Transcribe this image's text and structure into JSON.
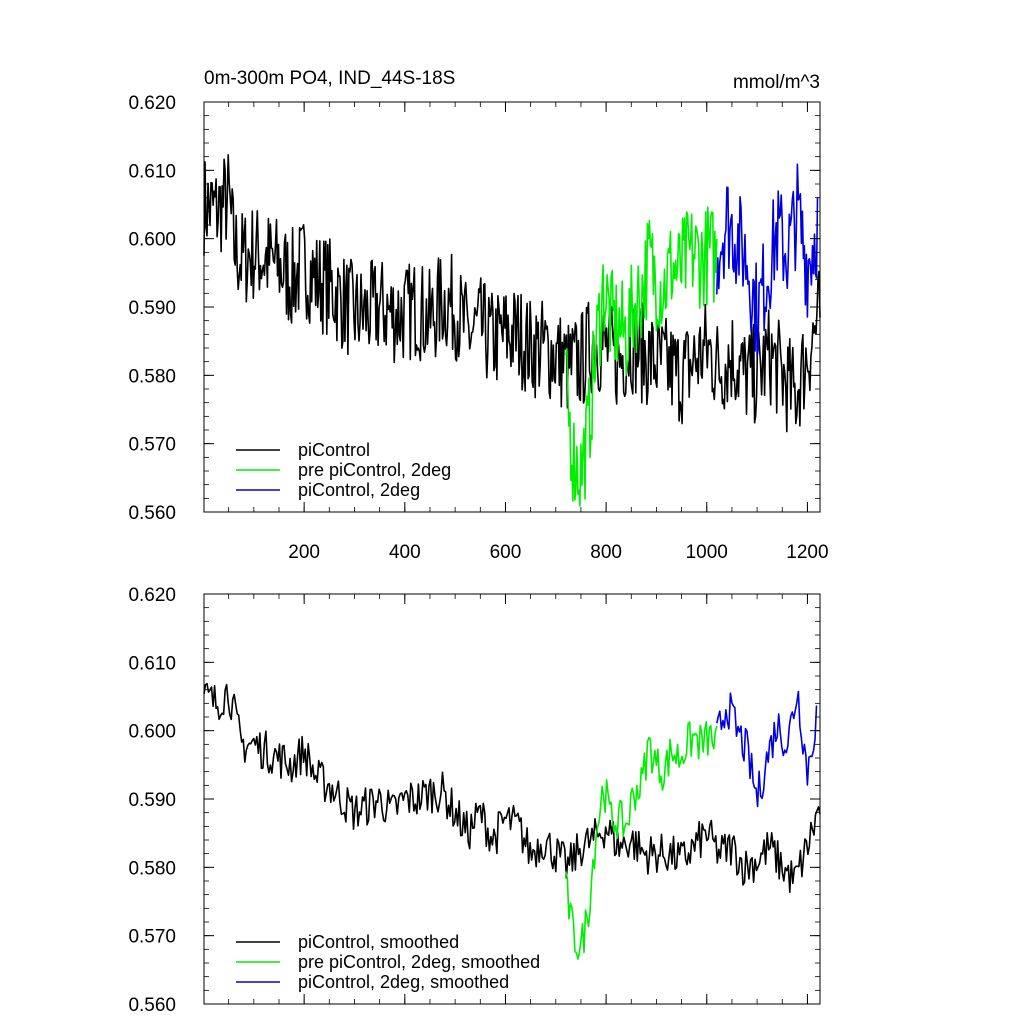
{
  "header": {
    "title": "0m-300m PO4, IND_44S-18S",
    "units": "mmol/m^3"
  },
  "chart_data": [
    {
      "type": "line",
      "panel": "top",
      "xlim": [
        1,
        1225
      ],
      "ylim": [
        0.56,
        0.62
      ],
      "x_ticks": [
        200,
        400,
        600,
        800,
        1000,
        1200
      ],
      "x_tick_labels": [
        "200",
        "400",
        "600",
        "800",
        "1000",
        "1200"
      ],
      "y_ticks": [
        0.56,
        0.57,
        0.58,
        0.59,
        0.6,
        0.61,
        0.62
      ],
      "y_tick_labels": [
        "0.560",
        "0.570",
        "0.580",
        "0.590",
        "0.600",
        "0.610",
        "0.620"
      ],
      "legend_position": "bottom-left",
      "series": [
        {
          "name": "piControl",
          "color": "#000000",
          "x": [
            1,
            25,
            50,
            60,
            75,
            100,
            125,
            150,
            175,
            200,
            225,
            250,
            275,
            300,
            325,
            350,
            375,
            400,
            425,
            450,
            475,
            500,
            525,
            550,
            575,
            600,
            625,
            650,
            675,
            700,
            725,
            750,
            775,
            800,
            825,
            850,
            875,
            900,
            925,
            950,
            975,
            1000,
            1025,
            1050,
            1075,
            1100,
            1125,
            1150,
            1175,
            1200,
            1225
          ],
          "y": [
            0.605,
            0.604,
            0.606,
            0.599,
            0.597,
            0.598,
            0.597,
            0.596,
            0.594,
            0.596,
            0.594,
            0.593,
            0.591,
            0.589,
            0.589,
            0.59,
            0.589,
            0.589,
            0.59,
            0.588,
            0.591,
            0.59,
            0.586,
            0.587,
            0.585,
            0.586,
            0.586,
            0.584,
            0.584,
            0.583,
            0.581,
            0.582,
            0.585,
            0.584,
            0.582,
            0.585,
            0.583,
            0.582,
            0.581,
            0.58,
            0.582,
            0.584,
            0.581,
            0.583,
            0.58,
            0.58,
            0.583,
            0.58,
            0.577,
            0.583,
            0.589
          ]
        },
        {
          "name": "pre piControl, 2deg",
          "color": "#00ee00",
          "x": [
            720,
            735,
            750,
            765,
            780,
            795,
            810,
            825,
            840,
            855,
            870,
            885,
            900,
            915,
            930,
            945,
            960,
            975,
            990,
            1005,
            1020
          ],
          "y": [
            0.578,
            0.568,
            0.566,
            0.572,
            0.584,
            0.593,
            0.588,
            0.587,
            0.586,
            0.59,
            0.592,
            0.597,
            0.594,
            0.593,
            0.596,
            0.595,
            0.597,
            0.598,
            0.597,
            0.598,
            0.597
          ]
        },
        {
          "name": "piControl, 2deg",
          "color": "#0000dd",
          "x": [
            1020,
            1040,
            1060,
            1080,
            1100,
            1120,
            1140,
            1160,
            1180,
            1200,
            1220
          ],
          "y": [
            0.598,
            0.603,
            0.6,
            0.597,
            0.589,
            0.595,
            0.601,
            0.598,
            0.604,
            0.596,
            0.602
          ]
        }
      ]
    },
    {
      "type": "line",
      "panel": "bottom",
      "xlim": [
        1,
        1225
      ],
      "ylim": [
        0.56,
        0.62
      ],
      "x_ticks": [
        200,
        400,
        600,
        800,
        1000,
        1200
      ],
      "y_ticks": [
        0.56,
        0.57,
        0.58,
        0.59,
        0.6,
        0.61,
        0.62
      ],
      "y_tick_labels": [
        "0.560",
        "0.570",
        "0.580",
        "0.590",
        "0.600",
        "0.610",
        "0.620"
      ],
      "legend_position": "bottom-left",
      "series": [
        {
          "name": "piControl, smoothed",
          "color": "#000000",
          "x": [
            1,
            25,
            50,
            75,
            100,
            125,
            150,
            175,
            200,
            225,
            250,
            275,
            300,
            325,
            350,
            375,
            400,
            425,
            450,
            475,
            500,
            525,
            550,
            575,
            600,
            625,
            650,
            675,
            700,
            725,
            750,
            775,
            800,
            825,
            850,
            875,
            900,
            925,
            950,
            975,
            1000,
            1025,
            1050,
            1075,
            1100,
            1125,
            1150,
            1175,
            1200,
            1225
          ],
          "y": [
            0.605,
            0.604,
            0.606,
            0.598,
            0.598,
            0.597,
            0.596,
            0.595,
            0.597,
            0.593,
            0.592,
            0.59,
            0.588,
            0.589,
            0.59,
            0.588,
            0.59,
            0.59,
            0.591,
            0.591,
            0.588,
            0.585,
            0.588,
            0.584,
            0.587,
            0.586,
            0.582,
            0.584,
            0.582,
            0.58,
            0.583,
            0.584,
            0.586,
            0.583,
            0.584,
            0.582,
            0.582,
            0.582,
            0.581,
            0.583,
            0.585,
            0.582,
            0.583,
            0.58,
            0.581,
            0.583,
            0.58,
            0.578,
            0.583,
            0.589
          ]
        },
        {
          "name": "pre piControl, 2deg, smoothed",
          "color": "#00ee00",
          "x": [
            720,
            735,
            750,
            765,
            780,
            795,
            810,
            825,
            840,
            855,
            870,
            885,
            900,
            915,
            930,
            945,
            960,
            975,
            990,
            1005,
            1020
          ],
          "y": [
            0.577,
            0.57,
            0.568,
            0.574,
            0.585,
            0.592,
            0.587,
            0.587,
            0.586,
            0.591,
            0.592,
            0.598,
            0.595,
            0.594,
            0.597,
            0.596,
            0.598,
            0.599,
            0.598,
            0.599,
            0.598
          ]
        },
        {
          "name": "piControl, 2deg, smoothed",
          "color": "#0000dd",
          "x": [
            1020,
            1040,
            1060,
            1080,
            1100,
            1120,
            1140,
            1160,
            1180,
            1200,
            1220
          ],
          "y": [
            0.599,
            0.604,
            0.6,
            0.597,
            0.59,
            0.596,
            0.601,
            0.598,
            0.606,
            0.594,
            0.603
          ]
        }
      ]
    }
  ]
}
